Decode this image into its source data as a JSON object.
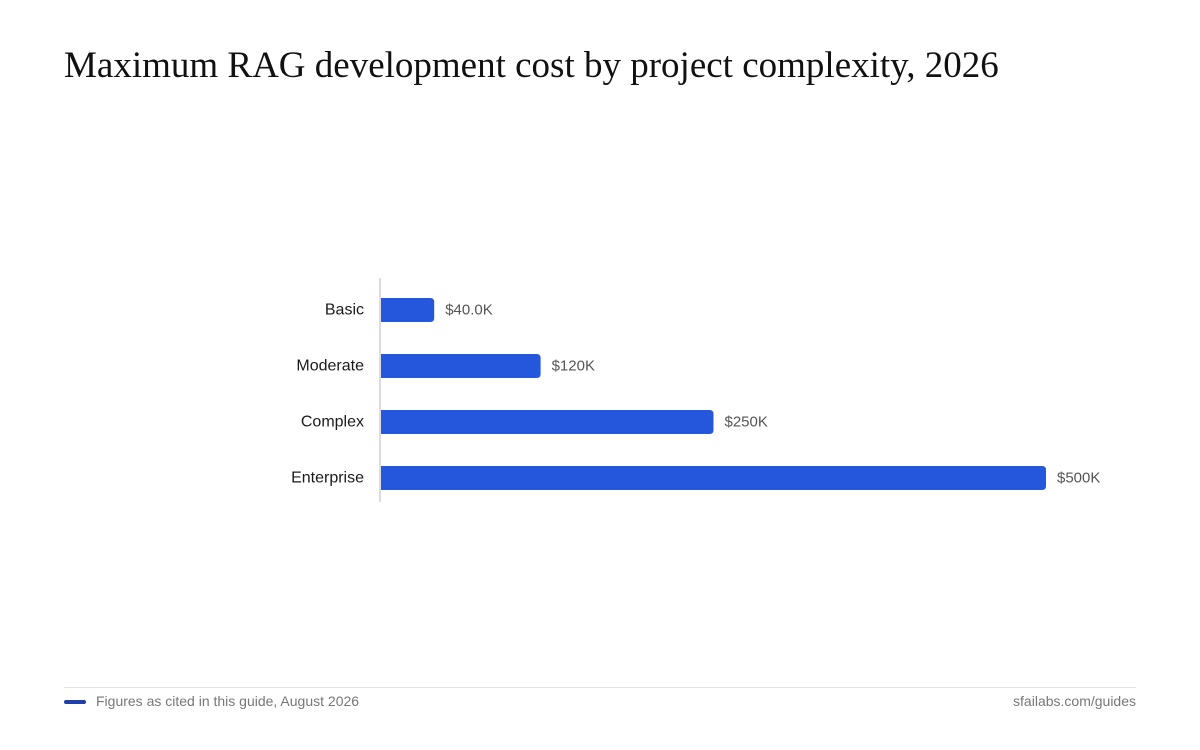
{
  "chart_data": {
    "type": "bar",
    "orientation": "horizontal",
    "title": "Maximum RAG development cost by project complexity, 2026",
    "categories": [
      "Basic",
      "Moderate",
      "Complex",
      "Enterprise"
    ],
    "values": [
      40000,
      120000,
      250000,
      500000
    ],
    "value_labels": [
      "$40.0K",
      "$120K",
      "$250K",
      "$500K"
    ],
    "xlim": [
      0,
      500000
    ],
    "grid": false,
    "bar_color": "#2457db"
  },
  "footer": {
    "note": "Figures as cited in this guide, August 2026",
    "source": "sfailabs.com/guides",
    "swatch_color": "#1f3fa8"
  }
}
